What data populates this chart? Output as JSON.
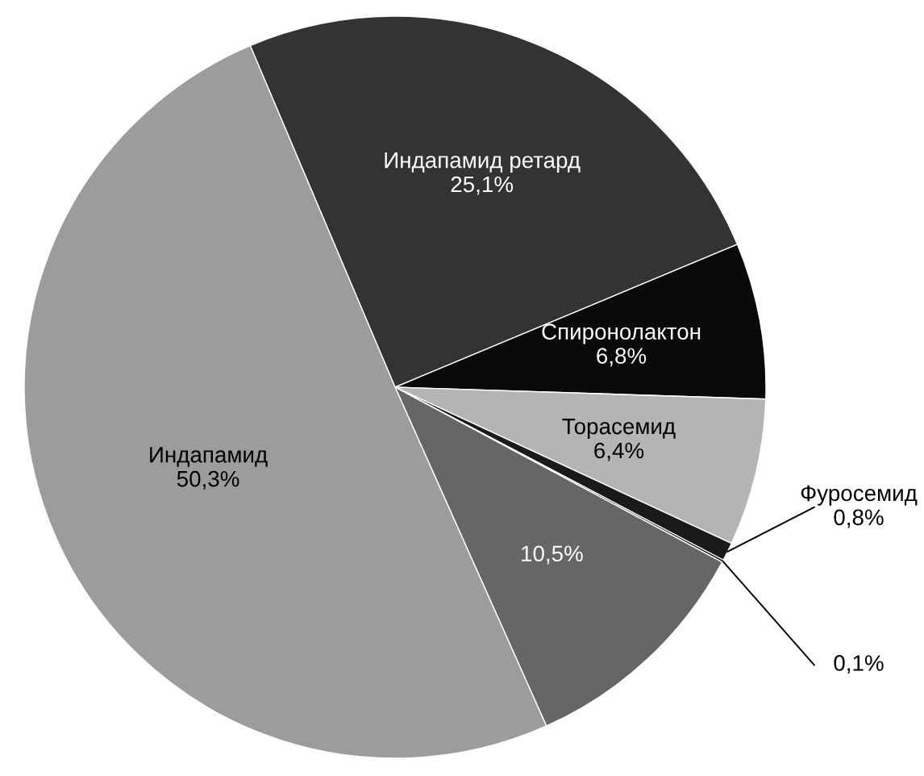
{
  "chart_data": {
    "type": "pie",
    "categories": [
      "Индапамид ретард",
      "Спиронолактон",
      "Торасемид",
      "Фуросемид",
      null,
      null,
      "Индапамид"
    ],
    "values": [
      25.1,
      6.8,
      6.4,
      0.8,
      0.1,
      10.5,
      50.3
    ],
    "value_labels": [
      "25,1%",
      "6,8%",
      "6,4%",
      "0,8%",
      "0,1%",
      "10,5%",
      "50,3%"
    ],
    "colors": [
      "#333333",
      "#0a0a0a",
      "#b4b4b4",
      "#1a1a1a",
      "#000000",
      "#666666",
      "#9c9c9c"
    ]
  }
}
